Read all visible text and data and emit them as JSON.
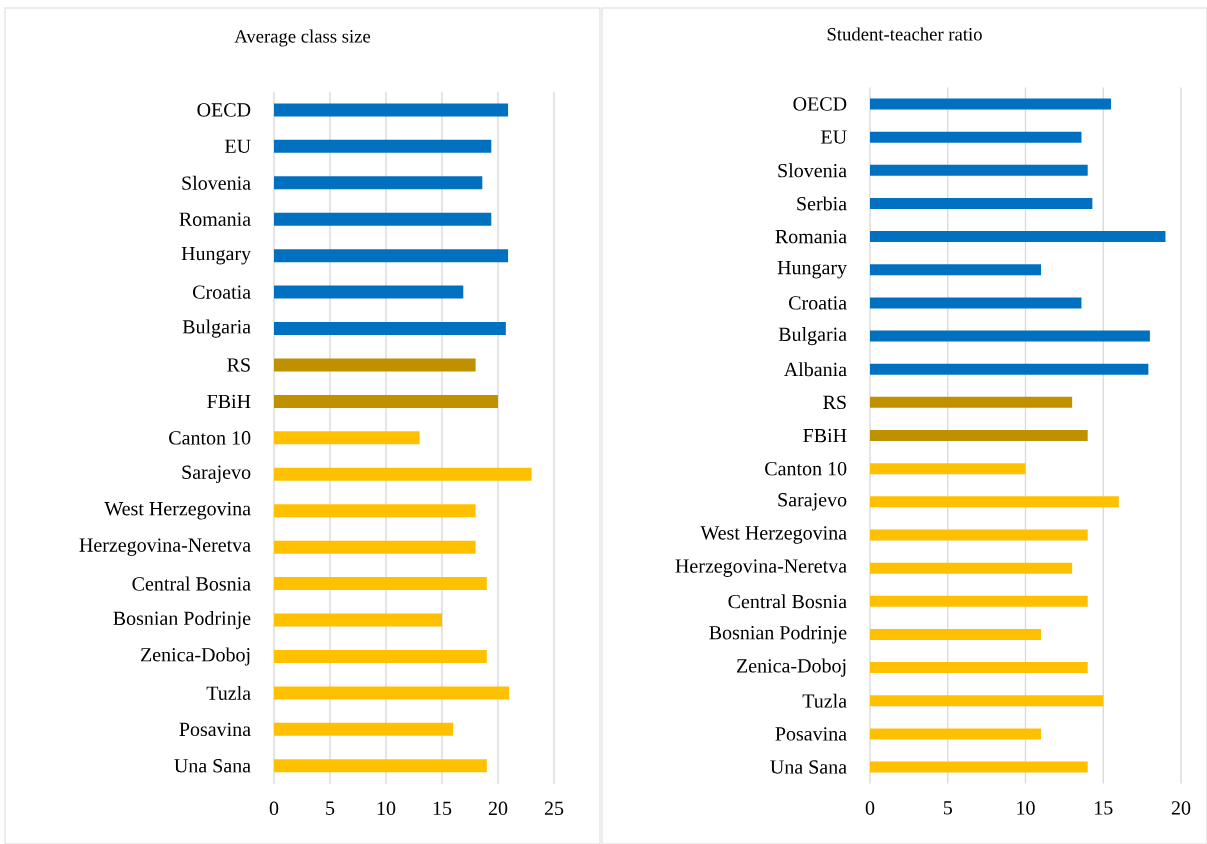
{
  "chart_data": [
    {
      "type": "bar",
      "orientation": "horizontal",
      "title": "Average class size",
      "categories": [
        "OECD",
        "EU",
        "Slovenia",
        "Romania",
        "Hungary",
        "Croatia",
        "Bulgaria",
        "RS",
        "FBiH",
        "Canton 10",
        "Sarajevo",
        "West Herzegovina",
        "Herzegovina-Neretva",
        "Central Bosnia",
        "Bosnian Podrinje",
        "Zenica-Doboj",
        "Tuzla",
        "Posavina",
        "Una Sana"
      ],
      "values": [
        20.9,
        19.4,
        18.6,
        19.4,
        20.9,
        16.9,
        20.7,
        18,
        20,
        13,
        23,
        18,
        18,
        19,
        15,
        19,
        21,
        16,
        19
      ],
      "colors": [
        "#0070c0",
        "#0070c0",
        "#0070c0",
        "#0070c0",
        "#0070c0",
        "#0070c0",
        "#0070c0",
        "#bf9000",
        "#bf9000",
        "#ffc000",
        "#ffc000",
        "#ffc000",
        "#ffc000",
        "#ffc000",
        "#ffc000",
        "#ffc000",
        "#ffc000",
        "#ffc000",
        "#ffc000"
      ],
      "xlim": [
        0,
        25
      ],
      "xticks": [
        0,
        5,
        10,
        15,
        20,
        25
      ],
      "grid": "x"
    },
    {
      "type": "bar",
      "orientation": "horizontal",
      "title": "Student-teacher ratio",
      "categories": [
        "OECD",
        "EU",
        "Slovenia",
        "Serbia",
        "Romania",
        "Hungary",
        "Croatia",
        "Bulgaria",
        "Albania",
        "RS",
        "FBiH",
        "Canton 10",
        "Sarajevo",
        "West Herzegovina",
        "Herzegovina-Neretva",
        "Central Bosnia",
        "Bosnian Podrinje",
        "Zenica-Doboj",
        "Tuzla",
        "Posavina",
        "Una Sana"
      ],
      "values": [
        15.5,
        13.6,
        14,
        14.3,
        19,
        11,
        13.6,
        18,
        17.9,
        13,
        14,
        10,
        16,
        14,
        13,
        14,
        11,
        14,
        15,
        11,
        14
      ],
      "colors": [
        "#0070c0",
        "#0070c0",
        "#0070c0",
        "#0070c0",
        "#0070c0",
        "#0070c0",
        "#0070c0",
        "#0070c0",
        "#0070c0",
        "#bf9000",
        "#bf9000",
        "#ffc000",
        "#ffc000",
        "#ffc000",
        "#ffc000",
        "#ffc000",
        "#ffc000",
        "#ffc000",
        "#ffc000",
        "#ffc000",
        "#ffc000"
      ],
      "xlim": [
        0,
        20
      ],
      "xticks": [
        0,
        5,
        10,
        15,
        20
      ],
      "grid": "x"
    }
  ]
}
